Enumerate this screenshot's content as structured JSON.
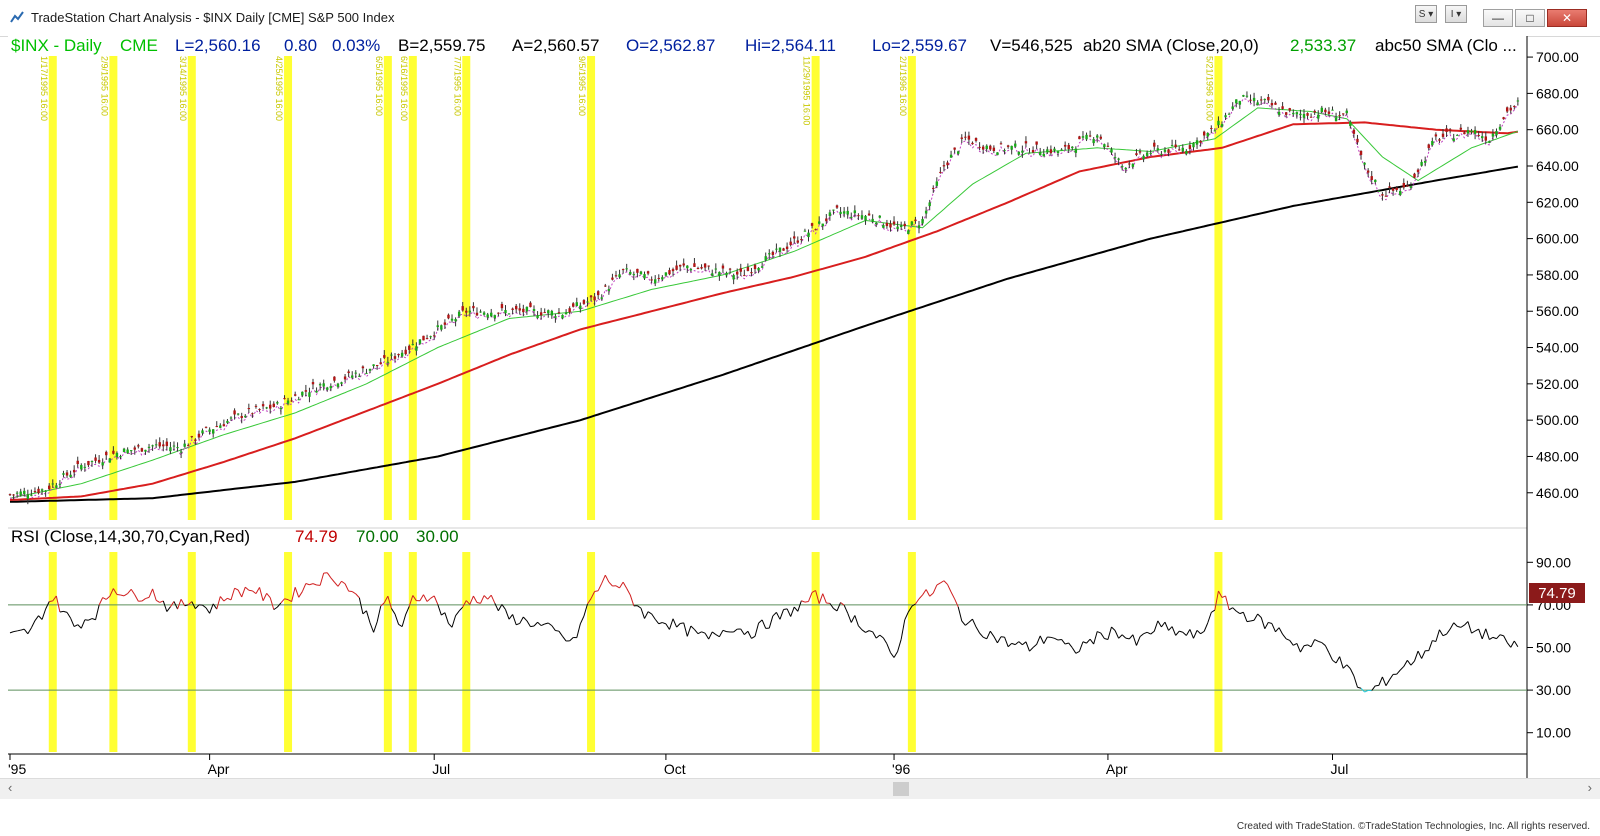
{
  "window": {
    "title": "TradeStation Chart Analysis - $INX Daily [CME] S&P 500 Index",
    "btn_s": "S ▾",
    "btn_i": "I ▾",
    "footer": "Created with TradeStation. ©TradeStation Technologies, Inc. All rights reserved."
  },
  "header": {
    "symbol": "$INX - Daily",
    "exchange": "CME",
    "last": "L=2,560.16",
    "change": "0.80",
    "change_pct": "0.03%",
    "bid": "B=2,559.75",
    "ask": "A=2,560.57",
    "open": "O=2,562.87",
    "high": "Hi=2,564.11",
    "low": "Lo=2,559.67",
    "volume": "V=546,525",
    "sma20_label": "ab20 SMA (Close,20,0)",
    "sma20_value": "2,533.37",
    "sma50_label": "abc50 SMA (Clo ...",
    "colors": {
      "symbol": "#00c000",
      "values": "#00209f",
      "black": "#000000",
      "green_val": "#00a000"
    }
  },
  "rsi_header": {
    "label": "RSI (Close,14,30,70,Cyan,Red)",
    "value": "74.79",
    "ob": "70.00",
    "os": "30.00",
    "badge": "74.79",
    "colors": {
      "value": "#c00000",
      "levels": "#007000",
      "badge_bg": "#8b1a1a"
    }
  },
  "chart_data": {
    "type": "line",
    "title": "$INX Daily [CME] S&P 500 Index",
    "x_ticks": [
      {
        "label": "'95",
        "i": 0
      },
      {
        "label": "Apr",
        "i": 56
      },
      {
        "label": "Jul",
        "i": 119
      },
      {
        "label": "Oct",
        "i": 184
      },
      {
        "label": "'96",
        "i": 248
      },
      {
        "label": "Apr",
        "i": 308
      },
      {
        "label": "Jul",
        "i": 371
      }
    ],
    "bars": 424,
    "price_axis": {
      "min": 445,
      "max": 705,
      "ticks": [
        460,
        480,
        500,
        520,
        540,
        560,
        580,
        600,
        620,
        640,
        660,
        680,
        700
      ],
      "tick_labels": [
        "460.00",
        "480.00",
        "500.00",
        "520.00",
        "540.00",
        "560.00",
        "580.00",
        "600.00",
        "620.00",
        "640.00",
        "660.00",
        "680.00",
        "700.00"
      ]
    },
    "rsi_axis": {
      "min": 0,
      "max": 100,
      "ticks": [
        10,
        30,
        50,
        70,
        90
      ],
      "tick_labels": [
        "10.00",
        "30.00",
        "50.00",
        "70.00",
        "90.00"
      ],
      "overbought": 70,
      "oversold": 30
    },
    "highlight_dates": [
      "1/17/1995 16:00",
      "2/9/1995 16:00",
      "3/14/1995 16:00",
      "4/25/1995 16:00",
      "6/5/1995 16:00",
      "6/16/1995 16:00",
      "7/7/1995 16:00",
      "9/5/1995 16:00",
      "11/29/1995 16:00",
      "2/1/1996 16:00",
      "5/21/1996 16:00"
    ],
    "highlight_bars": [
      12,
      29,
      51,
      78,
      106,
      113,
      128,
      163,
      226,
      253,
      339
    ],
    "close_anchors": [
      [
        0,
        459
      ],
      [
        10,
        462
      ],
      [
        20,
        475
      ],
      [
        30,
        482
      ],
      [
        40,
        486
      ],
      [
        48,
        485
      ],
      [
        55,
        494
      ],
      [
        65,
        503
      ],
      [
        75,
        508
      ],
      [
        85,
        518
      ],
      [
        95,
        524
      ],
      [
        105,
        532
      ],
      [
        112,
        540
      ],
      [
        120,
        550
      ],
      [
        128,
        560
      ],
      [
        135,
        560
      ],
      [
        145,
        560
      ],
      [
        155,
        559
      ],
      [
        165,
        568
      ],
      [
        172,
        582
      ],
      [
        180,
        578
      ],
      [
        190,
        585
      ],
      [
        205,
        580
      ],
      [
        215,
        592
      ],
      [
        225,
        605
      ],
      [
        232,
        615
      ],
      [
        242,
        612
      ],
      [
        250,
        605
      ],
      [
        256,
        610
      ],
      [
        262,
        640
      ],
      [
        268,
        655
      ],
      [
        275,
        650
      ],
      [
        285,
        650
      ],
      [
        295,
        648
      ],
      [
        305,
        658
      ],
      [
        312,
        640
      ],
      [
        320,
        648
      ],
      [
        330,
        650
      ],
      [
        338,
        660
      ],
      [
        345,
        677
      ],
      [
        352,
        675
      ],
      [
        360,
        668
      ],
      [
        368,
        670
      ],
      [
        375,
        668
      ],
      [
        380,
        640
      ],
      [
        385,
        625
      ],
      [
        392,
        628
      ],
      [
        400,
        655
      ],
      [
        410,
        660
      ],
      [
        415,
        655
      ],
      [
        420,
        670
      ],
      [
        430,
        685
      ],
      [
        440,
        690
      ],
      [
        445,
        692
      ]
    ],
    "sma20_anchors": [
      [
        0,
        457
      ],
      [
        20,
        465
      ],
      [
        40,
        478
      ],
      [
        60,
        492
      ],
      [
        80,
        504
      ],
      [
        100,
        520
      ],
      [
        120,
        540
      ],
      [
        140,
        556
      ],
      [
        160,
        560
      ],
      [
        180,
        572
      ],
      [
        200,
        580
      ],
      [
        220,
        593
      ],
      [
        240,
        610
      ],
      [
        256,
        606
      ],
      [
        270,
        630
      ],
      [
        285,
        647
      ],
      [
        305,
        650
      ],
      [
        320,
        648
      ],
      [
        338,
        655
      ],
      [
        350,
        672
      ],
      [
        365,
        670
      ],
      [
        375,
        666
      ],
      [
        385,
        645
      ],
      [
        395,
        632
      ],
      [
        410,
        650
      ],
      [
        430,
        664
      ],
      [
        445,
        678
      ]
    ],
    "sma50_anchors": [
      [
        0,
        456
      ],
      [
        20,
        458
      ],
      [
        40,
        465
      ],
      [
        60,
        477
      ],
      [
        80,
        490
      ],
      [
        100,
        505
      ],
      [
        120,
        520
      ],
      [
        140,
        536
      ],
      [
        160,
        550
      ],
      [
        180,
        560
      ],
      [
        200,
        570
      ],
      [
        220,
        579
      ],
      [
        240,
        590
      ],
      [
        260,
        604
      ],
      [
        280,
        620
      ],
      [
        300,
        637
      ],
      [
        320,
        645
      ],
      [
        340,
        650
      ],
      [
        360,
        663
      ],
      [
        380,
        664
      ],
      [
        400,
        660
      ],
      [
        420,
        658
      ],
      [
        445,
        666
      ]
    ],
    "sma200_anchors": [
      [
        0,
        455
      ],
      [
        40,
        457
      ],
      [
        80,
        466
      ],
      [
        120,
        480
      ],
      [
        160,
        500
      ],
      [
        200,
        525
      ],
      [
        240,
        552
      ],
      [
        280,
        578
      ],
      [
        320,
        600
      ],
      [
        360,
        618
      ],
      [
        400,
        632
      ],
      [
        445,
        647
      ]
    ],
    "rsi_anchors": [
      [
        0,
        55
      ],
      [
        6,
        58
      ],
      [
        12,
        74
      ],
      [
        18,
        60
      ],
      [
        24,
        66
      ],
      [
        29,
        78
      ],
      [
        35,
        74
      ],
      [
        40,
        76
      ],
      [
        45,
        68
      ],
      [
        51,
        72
      ],
      [
        56,
        68
      ],
      [
        62,
        75
      ],
      [
        68,
        78
      ],
      [
        74,
        70
      ],
      [
        78,
        73
      ],
      [
        84,
        80
      ],
      [
        90,
        84
      ],
      [
        96,
        77
      ],
      [
        102,
        60
      ],
      [
        106,
        73
      ],
      [
        110,
        58
      ],
      [
        113,
        73
      ],
      [
        118,
        75
      ],
      [
        124,
        60
      ],
      [
        128,
        72
      ],
      [
        134,
        74
      ],
      [
        140,
        64
      ],
      [
        146,
        62
      ],
      [
        152,
        58
      ],
      [
        158,
        52
      ],
      [
        163,
        73
      ],
      [
        167,
        82
      ],
      [
        172,
        78
      ],
      [
        178,
        66
      ],
      [
        184,
        62
      ],
      [
        190,
        58
      ],
      [
        196,
        54
      ],
      [
        202,
        60
      ],
      [
        208,
        57
      ],
      [
        214,
        63
      ],
      [
        220,
        68
      ],
      [
        226,
        74
      ],
      [
        232,
        70
      ],
      [
        238,
        62
      ],
      [
        244,
        54
      ],
      [
        248,
        45
      ],
      [
        253,
        72
      ],
      [
        258,
        75
      ],
      [
        262,
        81
      ],
      [
        268,
        62
      ],
      [
        274,
        57
      ],
      [
        280,
        52
      ],
      [
        286,
        50
      ],
      [
        292,
        56
      ],
      [
        298,
        48
      ],
      [
        304,
        54
      ],
      [
        310,
        58
      ],
      [
        316,
        52
      ],
      [
        322,
        60
      ],
      [
        328,
        57
      ],
      [
        334,
        55
      ],
      [
        339,
        74
      ],
      [
        344,
        67
      ],
      [
        350,
        63
      ],
      [
        356,
        58
      ],
      [
        362,
        50
      ],
      [
        368,
        52
      ],
      [
        372,
        45
      ],
      [
        376,
        38
      ],
      [
        380,
        28
      ],
      [
        384,
        32
      ],
      [
        390,
        40
      ],
      [
        396,
        47
      ],
      [
        402,
        58
      ],
      [
        408,
        60
      ],
      [
        414,
        56
      ],
      [
        420,
        52
      ],
      [
        424,
        50
      ],
      [
        428,
        62
      ],
      [
        434,
        70
      ],
      [
        440,
        72
      ],
      [
        445,
        75
      ]
    ]
  }
}
